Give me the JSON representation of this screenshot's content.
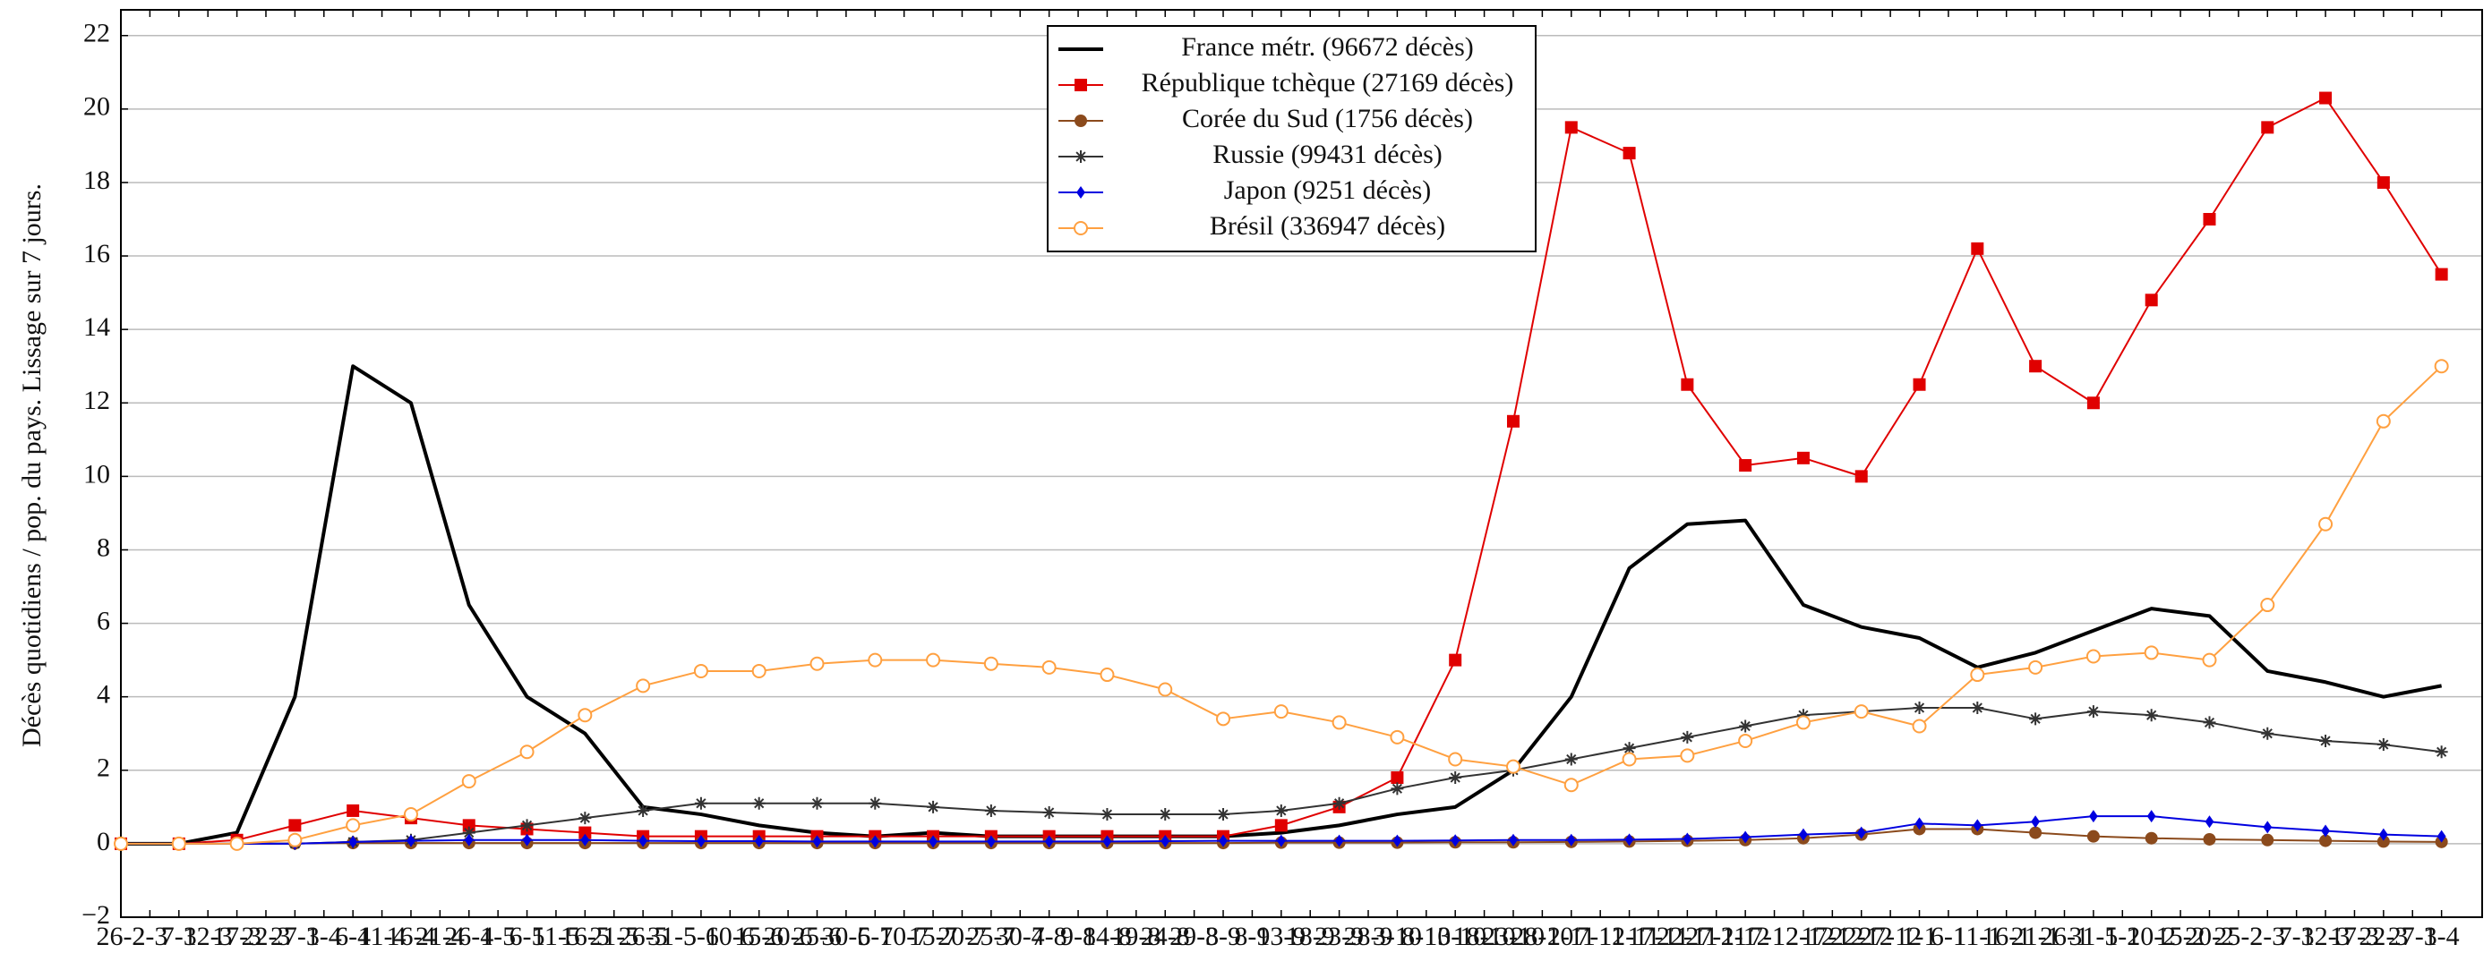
{
  "chart_data": {
    "type": "line",
    "y_label": "Décès quotidiens / pop. du pays. Lissage sur 7 jours.",
    "x": [
      0,
      10,
      20,
      30,
      40,
      50,
      60,
      70,
      80,
      90,
      100,
      110,
      120,
      130,
      140,
      150,
      160,
      170,
      180,
      190,
      200,
      210,
      220,
      230,
      240,
      250,
      260,
      270,
      280,
      290,
      300,
      310,
      320,
      330,
      340,
      350,
      360,
      370,
      380,
      390,
      400
    ],
    "xlim": [
      0,
      407
    ],
    "xticks": [
      {
        "value": 0,
        "label": "26-2"
      },
      {
        "value": 5,
        "label": "2-3"
      },
      {
        "value": 10,
        "label": "7-3"
      },
      {
        "value": 15,
        "label": "12-3"
      },
      {
        "value": 20,
        "label": "17-3"
      },
      {
        "value": 25,
        "label": "22-3"
      },
      {
        "value": 30,
        "label": "27-3"
      },
      {
        "value": 35,
        "label": "1-4"
      },
      {
        "value": 40,
        "label": "6-4"
      },
      {
        "value": 45,
        "label": "11-4"
      },
      {
        "value": 50,
        "label": "16-4"
      },
      {
        "value": 55,
        "label": "21-4"
      },
      {
        "value": 60,
        "label": "26-4"
      },
      {
        "value": 65,
        "label": "1-5"
      },
      {
        "value": 70,
        "label": "6-5"
      },
      {
        "value": 75,
        "label": "11-5"
      },
      {
        "value": 80,
        "label": "16-5"
      },
      {
        "value": 85,
        "label": "21-5"
      },
      {
        "value": 90,
        "label": "26-5"
      },
      {
        "value": 95,
        "label": "31-5"
      },
      {
        "value": 100,
        "label": "5-6"
      },
      {
        "value": 105,
        "label": "10-6"
      },
      {
        "value": 110,
        "label": "15-6"
      },
      {
        "value": 115,
        "label": "20-6"
      },
      {
        "value": 120,
        "label": "25-6"
      },
      {
        "value": 125,
        "label": "30-6"
      },
      {
        "value": 130,
        "label": "5-7"
      },
      {
        "value": 135,
        "label": "10-7"
      },
      {
        "value": 140,
        "label": "15-7"
      },
      {
        "value": 145,
        "label": "20-7"
      },
      {
        "value": 150,
        "label": "25-7"
      },
      {
        "value": 155,
        "label": "30-7"
      },
      {
        "value": 160,
        "label": "4-8"
      },
      {
        "value": 165,
        "label": "9-8"
      },
      {
        "value": 170,
        "label": "14-8"
      },
      {
        "value": 175,
        "label": "19-8"
      },
      {
        "value": 180,
        "label": "24-8"
      },
      {
        "value": 185,
        "label": "29-8"
      },
      {
        "value": 190,
        "label": "3-9"
      },
      {
        "value": 195,
        "label": "8-9"
      },
      {
        "value": 200,
        "label": "13-9"
      },
      {
        "value": 205,
        "label": "18-9"
      },
      {
        "value": 210,
        "label": "23-9"
      },
      {
        "value": 215,
        "label": "28-9"
      },
      {
        "value": 220,
        "label": "3-10"
      },
      {
        "value": 225,
        "label": "8-10"
      },
      {
        "value": 230,
        "label": "13-10"
      },
      {
        "value": 235,
        "label": "18-10"
      },
      {
        "value": 240,
        "label": "23-10"
      },
      {
        "value": 245,
        "label": "28-10"
      },
      {
        "value": 250,
        "label": "2-11"
      },
      {
        "value": 255,
        "label": "7-11"
      },
      {
        "value": 260,
        "label": "12-11"
      },
      {
        "value": 265,
        "label": "17-11"
      },
      {
        "value": 270,
        "label": "22-11"
      },
      {
        "value": 275,
        "label": "27-11"
      },
      {
        "value": 280,
        "label": "2-12"
      },
      {
        "value": 285,
        "label": "7-12"
      },
      {
        "value": 290,
        "label": "12-12"
      },
      {
        "value": 295,
        "label": "17-12"
      },
      {
        "value": 300,
        "label": "22-12"
      },
      {
        "value": 305,
        "label": "27-12"
      },
      {
        "value": 310,
        "label": "1-1"
      },
      {
        "value": 315,
        "label": "6-1"
      },
      {
        "value": 320,
        "label": "11-1"
      },
      {
        "value": 325,
        "label": "16-1"
      },
      {
        "value": 330,
        "label": "21-1"
      },
      {
        "value": 335,
        "label": "26-1"
      },
      {
        "value": 340,
        "label": "31-1"
      },
      {
        "value": 345,
        "label": "5-2"
      },
      {
        "value": 350,
        "label": "10-2"
      },
      {
        "value": 355,
        "label": "15-2"
      },
      {
        "value": 360,
        "label": "20-2"
      },
      {
        "value": 365,
        "label": "25-2"
      },
      {
        "value": 370,
        "label": "2-3"
      },
      {
        "value": 375,
        "label": "7-3"
      },
      {
        "value": 380,
        "label": "12-3"
      },
      {
        "value": 385,
        "label": "17-3"
      },
      {
        "value": 390,
        "label": "22-3"
      },
      {
        "value": 395,
        "label": "27-3"
      },
      {
        "value": 400,
        "label": "1-4"
      }
    ],
    "ylim": [
      -2,
      22.7
    ],
    "yticks": [
      {
        "value": -2,
        "label": "−2"
      },
      0,
      2,
      4,
      6,
      8,
      10,
      12,
      14,
      16,
      18,
      20,
      22
    ],
    "grid": true,
    "legend": "top-center",
    "series": [
      {
        "name": "France métr. (96672 décès)",
        "color": "#000000",
        "marker": "none",
        "values": [
          0,
          0,
          0.3,
          4,
          13,
          12,
          6.5,
          4,
          3,
          1,
          0.8,
          0.5,
          0.3,
          0.2,
          0.3,
          0.2,
          0.2,
          0.2,
          0.2,
          0.2,
          0.3,
          0.5,
          0.8,
          1,
          2,
          4,
          7.5,
          8.7,
          8.8,
          6.5,
          5.9,
          5.6,
          4.8,
          5.2,
          5.8,
          6.4,
          6.2,
          4.7,
          4.4,
          4,
          4.3
        ]
      },
      {
        "name": "République tchèque (27169 décès)",
        "color": "#e00000",
        "marker": "square",
        "values": [
          0,
          0,
          0.1,
          0.5,
          0.9,
          0.7,
          0.5,
          0.4,
          0.3,
          0.2,
          0.2,
          0.2,
          0.2,
          0.2,
          0.2,
          0.2,
          0.2,
          0.2,
          0.2,
          0.2,
          0.5,
          1,
          1.8,
          5,
          11.5,
          19.5,
          18.8,
          12.5,
          10.3,
          10.5,
          10,
          12.5,
          16.2,
          13,
          12,
          14.8,
          17,
          19.5,
          20.3,
          18,
          15.5
        ]
      },
      {
        "name": "Corée du Sud (1756 décès)",
        "color": "#8b4a1c",
        "marker": "circle",
        "values": [
          0,
          0,
          0,
          0.01,
          0.02,
          0.02,
          0.02,
          0.02,
          0.02,
          0.02,
          0.02,
          0.02,
          0.02,
          0.02,
          0.02,
          0.02,
          0.02,
          0.02,
          0.02,
          0.02,
          0.03,
          0.03,
          0.03,
          0.04,
          0.04,
          0.05,
          0.06,
          0.08,
          0.1,
          0.15,
          0.25,
          0.4,
          0.4,
          0.3,
          0.2,
          0.15,
          0.12,
          0.1,
          0.08,
          0.06,
          0.05
        ]
      },
      {
        "name": "Russie (99431 décès)",
        "color": "#333333",
        "marker": "star",
        "values": [
          0,
          0,
          0,
          0,
          0.05,
          0.1,
          0.3,
          0.5,
          0.7,
          0.9,
          1.1,
          1.1,
          1.1,
          1.1,
          1,
          0.9,
          0.85,
          0.8,
          0.8,
          0.8,
          0.9,
          1.1,
          1.5,
          1.8,
          2,
          2.3,
          2.6,
          2.9,
          3.2,
          3.5,
          3.6,
          3.7,
          3.7,
          3.4,
          3.6,
          3.5,
          3.3,
          3,
          2.8,
          2.7,
          2.5
        ]
      },
      {
        "name": "Japon (9251 décès)",
        "color": "#0000e0",
        "marker": "diamond",
        "values": [
          0,
          0,
          0,
          0,
          0.05,
          0.08,
          0.1,
          0.1,
          0.1,
          0.08,
          0.07,
          0.07,
          0.06,
          0.06,
          0.06,
          0.06,
          0.06,
          0.06,
          0.07,
          0.08,
          0.08,
          0.08,
          0.08,
          0.09,
          0.1,
          0.1,
          0.11,
          0.13,
          0.18,
          0.25,
          0.3,
          0.55,
          0.5,
          0.6,
          0.75,
          0.75,
          0.6,
          0.45,
          0.35,
          0.25,
          0.2
        ]
      },
      {
        "name": "Brésil (336947 décès)",
        "color": "#ffa040",
        "marker": "open-circle",
        "values": [
          0,
          0,
          0,
          0.1,
          0.5,
          0.8,
          1.7,
          2.5,
          3.5,
          4.3,
          4.7,
          4.7,
          4.9,
          5,
          5,
          4.9,
          4.8,
          4.6,
          4.2,
          3.4,
          3.6,
          3.3,
          2.9,
          2.3,
          2.1,
          1.6,
          2.3,
          2.4,
          2.8,
          3.3,
          3.6,
          3.2,
          4.6,
          4.8,
          5.1,
          5.2,
          5,
          6.5,
          8.7,
          11.5,
          13
        ]
      }
    ]
  }
}
